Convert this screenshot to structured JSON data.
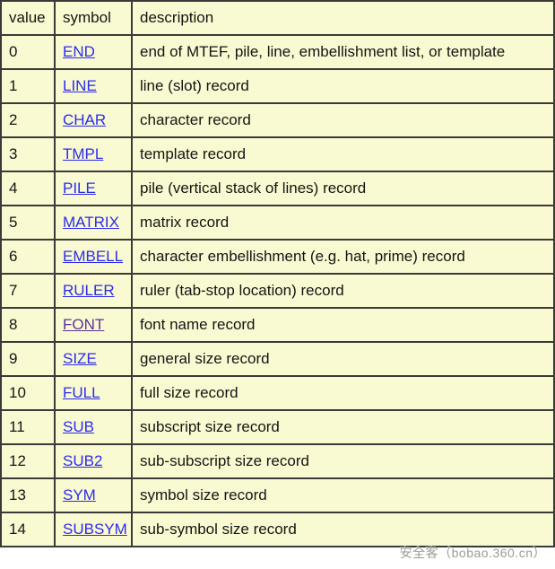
{
  "table": {
    "headers": {
      "value": "value",
      "symbol": "symbol",
      "description": "description"
    },
    "rows": [
      {
        "value": "0",
        "symbol": "END",
        "description": "end of MTEF, pile, line, embellishment list, or template",
        "visited": false
      },
      {
        "value": "1",
        "symbol": "LINE",
        "description": "line (slot) record",
        "visited": false
      },
      {
        "value": "2",
        "symbol": "CHAR",
        "description": "character record",
        "visited": false
      },
      {
        "value": "3",
        "symbol": "TMPL",
        "description": "template record",
        "visited": false
      },
      {
        "value": "4",
        "symbol": "PILE",
        "description": "pile (vertical stack of lines) record",
        "visited": false
      },
      {
        "value": "5",
        "symbol": "MATRIX",
        "description": "matrix record",
        "visited": false
      },
      {
        "value": "6",
        "symbol": "EMBELL",
        "description": "character embellishment (e.g. hat, prime) record",
        "visited": false
      },
      {
        "value": "7",
        "symbol": "RULER",
        "description": "ruler (tab-stop location) record",
        "visited": false
      },
      {
        "value": "8",
        "symbol": "FONT",
        "description": "font name record",
        "visited": true
      },
      {
        "value": "9",
        "symbol": "SIZE",
        "description": "general size record",
        "visited": false
      },
      {
        "value": "10",
        "symbol": "FULL",
        "description": "full size record",
        "visited": false
      },
      {
        "value": "11",
        "symbol": "SUB",
        "description": "subscript size record",
        "visited": false
      },
      {
        "value": "12",
        "symbol": "SUB2",
        "description": "sub-subscript size record",
        "visited": false
      },
      {
        "value": "13",
        "symbol": "SYM",
        "description": "symbol size record",
        "visited": false
      },
      {
        "value": "14",
        "symbol": "SUBSYM",
        "description": "sub-symbol size record",
        "visited": false
      }
    ]
  },
  "watermark": {
    "text": "安全客（bobao.360.cn）"
  },
  "colors": {
    "table_background": "#FAFAD2",
    "border": "#3A3A3A",
    "link": "#2B2BEF",
    "link_visited": "#5B3392",
    "text": "#141414",
    "watermark": "#9C9C92"
  }
}
